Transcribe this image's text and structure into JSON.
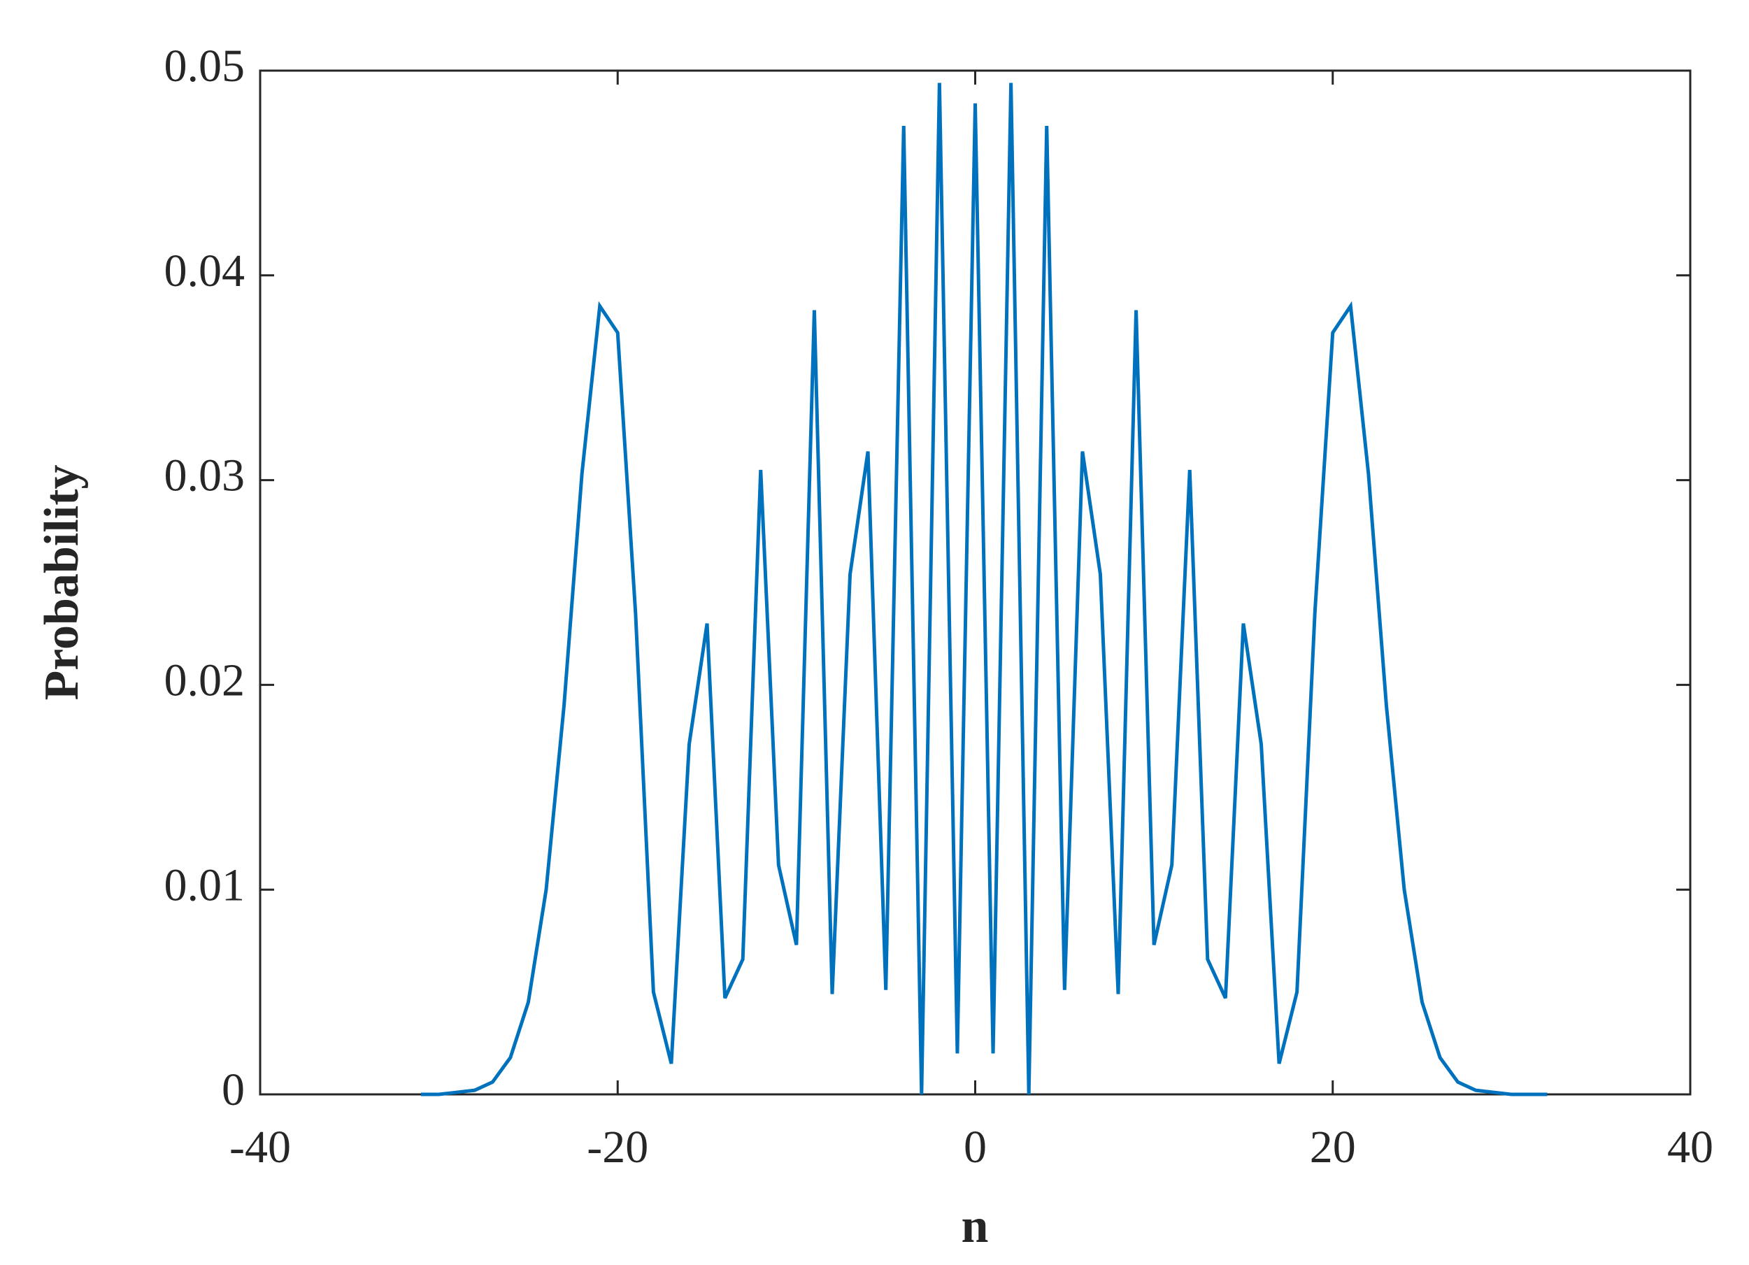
{
  "chart_data": {
    "type": "line",
    "xlabel": "n",
    "ylabel": "Probability",
    "x": [
      -31,
      -30,
      -29,
      -28,
      -27,
      -26,
      -25,
      -24,
      -23,
      -22,
      -21,
      -20,
      -19,
      -18,
      -17,
      -16,
      -15,
      -14,
      -13,
      -12,
      -11,
      -10,
      -9,
      -8,
      -7,
      -6,
      -5,
      -4,
      -3,
      -2,
      -1,
      0,
      1,
      2,
      3,
      4,
      5,
      6,
      7,
      8,
      9,
      10,
      11,
      12,
      13,
      14,
      15,
      16,
      17,
      18,
      19,
      20,
      21,
      22,
      23,
      24,
      25,
      26,
      27,
      28,
      29,
      30,
      31,
      32
    ],
    "series": [
      {
        "color": "#0072bd",
        "values": [
          0,
          0,
          0.0001,
          0.0002,
          0.0006,
          0.0018,
          0.0045,
          0.01,
          0.019,
          0.0303,
          0.0385,
          0.0372,
          0.0235,
          0.005,
          0.0015,
          0.0171,
          0.023,
          0.0047,
          0.0066,
          0.0305,
          0.0112,
          0.0073,
          0.0383,
          0.0049,
          0.0254,
          0.0314,
          0.0051,
          0.0473,
          0,
          0.0494,
          0.002,
          0.0484,
          0.002,
          0.0494,
          0,
          0.0473,
          0.0051,
          0.0314,
          0.0254,
          0.0049,
          0.0383,
          0.0073,
          0.0112,
          0.0305,
          0.0066,
          0.0047,
          0.023,
          0.0171,
          0.0015,
          0.005,
          0.0235,
          0.0372,
          0.0385,
          0.0303,
          0.019,
          0.01,
          0.0045,
          0.0018,
          0.0006,
          0.0002,
          0.0001,
          0,
          0,
          0
        ]
      }
    ],
    "xlim": [
      -40,
      40
    ],
    "xticks": [
      -40,
      -20,
      0,
      20,
      40
    ],
    "ylim": [
      0,
      0.05
    ],
    "yticks": [
      0,
      0.01,
      0.02,
      0.03,
      0.04,
      0.05
    ],
    "grid": false
  }
}
